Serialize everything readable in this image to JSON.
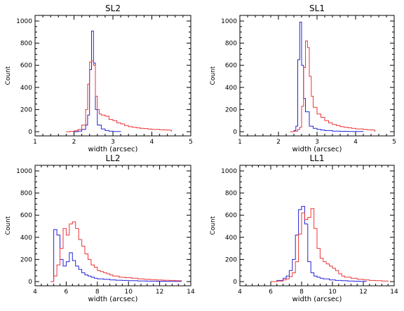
{
  "colors": {
    "series_a": "#2222dd",
    "series_b": "#ee3333",
    "axes": "#000000"
  },
  "chart_data": [
    {
      "type": "histogram",
      "title": "SL2",
      "xlabel": "width (arcsec)",
      "ylabel": "Count",
      "xlim": [
        1,
        5
      ],
      "ylim": [
        0,
        1000
      ],
      "xticks": [
        1,
        2,
        3,
        4,
        5
      ],
      "yticks": [
        0,
        200,
        400,
        600,
        800,
        1000
      ],
      "series": [
        {
          "color": "#2222dd",
          "x": [
            2.0,
            2.1,
            2.2,
            2.3,
            2.35,
            2.4,
            2.45,
            2.5,
            2.55,
            2.6,
            2.7,
            2.8,
            2.9,
            3.0,
            3.2
          ],
          "y": [
            0,
            5,
            20,
            60,
            150,
            560,
            910,
            620,
            200,
            60,
            25,
            10,
            5,
            2,
            0
          ]
        },
        {
          "color": "#ee3333",
          "x": [
            1.8,
            1.9,
            2.0,
            2.1,
            2.2,
            2.3,
            2.35,
            2.4,
            2.45,
            2.5,
            2.55,
            2.6,
            2.65,
            2.7,
            2.8,
            2.9,
            3.0,
            3.1,
            3.2,
            3.3,
            3.4,
            3.5,
            3.6,
            3.7,
            3.8,
            3.9,
            4.0,
            4.1,
            4.2,
            4.3,
            4.4,
            4.5
          ],
          "y": [
            0,
            3,
            8,
            20,
            60,
            200,
            430,
            630,
            640,
            600,
            320,
            200,
            160,
            150,
            140,
            110,
            100,
            80,
            70,
            55,
            45,
            40,
            35,
            30,
            28,
            24,
            20,
            20,
            18,
            16,
            14,
            0
          ]
        }
      ]
    },
    {
      "type": "histogram",
      "title": "SL1",
      "xlabel": "width (arcsec)",
      "ylabel": "Count",
      "xlim": [
        1,
        5
      ],
      "ylim": [
        0,
        1000
      ],
      "xticks": [
        1,
        2,
        3,
        4,
        5
      ],
      "yticks": [
        0,
        200,
        400,
        600,
        800,
        1000
      ],
      "series": [
        {
          "color": "#2222dd",
          "x": [
            2.3,
            2.4,
            2.45,
            2.5,
            2.55,
            2.6,
            2.65,
            2.7,
            2.8,
            2.9,
            3.0,
            3.1,
            3.2,
            3.4,
            3.6,
            3.8,
            4.0,
            4.2
          ],
          "y": [
            0,
            10,
            50,
            650,
            990,
            600,
            300,
            180,
            50,
            30,
            20,
            15,
            10,
            5,
            3,
            2,
            1,
            0
          ]
        },
        {
          "color": "#ee3333",
          "x": [
            2.3,
            2.4,
            2.5,
            2.55,
            2.6,
            2.65,
            2.7,
            2.75,
            2.8,
            2.85,
            2.9,
            3.0,
            3.1,
            3.2,
            3.3,
            3.4,
            3.5,
            3.6,
            3.7,
            3.8,
            3.9,
            4.0,
            4.1,
            4.2,
            4.3,
            4.4,
            4.5
          ],
          "y": [
            0,
            5,
            20,
            40,
            230,
            580,
            820,
            760,
            500,
            320,
            220,
            160,
            130,
            100,
            80,
            65,
            55,
            45,
            40,
            35,
            30,
            25,
            25,
            20,
            18,
            15,
            0
          ]
        }
      ]
    },
    {
      "type": "histogram",
      "title": "LL2",
      "xlabel": "width (arcsec)",
      "ylabel": "Count",
      "xlim": [
        4,
        14
      ],
      "ylim": [
        0,
        1000
      ],
      "xticks": [
        4,
        6,
        8,
        10,
        12,
        14
      ],
      "yticks": [
        0,
        200,
        400,
        600,
        800,
        1000
      ],
      "series": [
        {
          "color": "#2222dd",
          "x": [
            5.0,
            5.2,
            5.4,
            5.6,
            5.8,
            6.0,
            6.2,
            6.4,
            6.6,
            6.8,
            7.0,
            7.2,
            7.4,
            7.6,
            7.8,
            8.0,
            8.4,
            8.8,
            9.2,
            9.6,
            10.0,
            10.6,
            11.2,
            11.8,
            12.4,
            13.0,
            13.4
          ],
          "y": [
            0,
            470,
            420,
            200,
            140,
            180,
            260,
            190,
            140,
            110,
            80,
            60,
            50,
            40,
            30,
            25,
            20,
            15,
            12,
            10,
            8,
            6,
            4,
            3,
            2,
            1,
            0
          ]
        },
        {
          "color": "#ee3333",
          "x": [
            5.0,
            5.2,
            5.4,
            5.6,
            5.8,
            6.0,
            6.2,
            6.4,
            6.6,
            6.8,
            7.0,
            7.2,
            7.4,
            7.6,
            7.8,
            8.0,
            8.2,
            8.4,
            8.6,
            8.8,
            9.0,
            9.4,
            9.8,
            10.2,
            10.6,
            11.0,
            11.4,
            11.8,
            12.2,
            12.6,
            13.0,
            13.4
          ],
          "y": [
            0,
            50,
            150,
            300,
            480,
            420,
            520,
            540,
            480,
            380,
            320,
            250,
            200,
            150,
            130,
            100,
            90,
            80,
            70,
            60,
            50,
            40,
            35,
            30,
            25,
            20,
            18,
            14,
            12,
            10,
            8,
            0
          ]
        }
      ]
    },
    {
      "type": "histogram",
      "title": "LL1",
      "xlabel": "width (arcsec)",
      "ylabel": "Count",
      "xlim": [
        4,
        14
      ],
      "ylim": [
        0,
        1000
      ],
      "xticks": [
        4,
        6,
        8,
        10,
        12,
        14
      ],
      "yticks": [
        0,
        200,
        400,
        600,
        800,
        1000
      ],
      "series": [
        {
          "color": "#2222dd",
          "x": [
            6.0,
            6.4,
            6.8,
            7.0,
            7.2,
            7.4,
            7.6,
            7.8,
            8.0,
            8.2,
            8.4,
            8.6,
            8.8,
            9.0,
            9.2,
            9.4,
            9.8,
            10.2,
            10.6,
            11.0,
            11.4,
            11.8,
            12.2
          ],
          "y": [
            0,
            10,
            30,
            50,
            100,
            200,
            420,
            650,
            680,
            520,
            180,
            80,
            50,
            40,
            30,
            25,
            15,
            10,
            8,
            5,
            3,
            2,
            0
          ]
        },
        {
          "color": "#ee3333",
          "x": [
            6.0,
            6.4,
            6.8,
            7.0,
            7.2,
            7.4,
            7.6,
            7.8,
            8.0,
            8.2,
            8.4,
            8.6,
            8.8,
            9.0,
            9.2,
            9.4,
            9.6,
            9.8,
            10.0,
            10.2,
            10.4,
            10.6,
            10.8,
            11.2,
            11.6,
            12.0,
            12.4,
            12.8,
            13.2,
            13.6
          ],
          "y": [
            0,
            5,
            15,
            25,
            45,
            80,
            180,
            430,
            620,
            560,
            580,
            660,
            480,
            300,
            210,
            180,
            160,
            140,
            120,
            100,
            70,
            50,
            40,
            30,
            20,
            15,
            10,
            8,
            5,
            0
          ]
        }
      ]
    }
  ]
}
